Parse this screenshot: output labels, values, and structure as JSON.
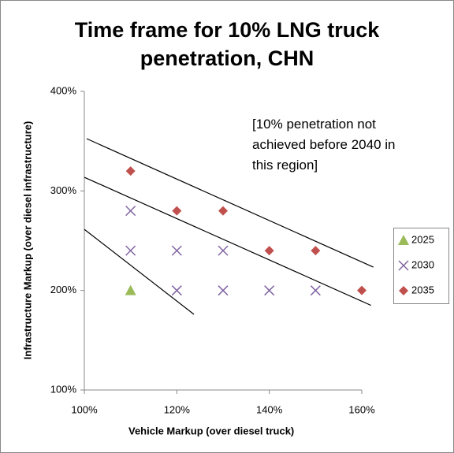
{
  "chart_data": {
    "type": "scatter",
    "title": "Time frame for 10% LNG truck penetration, CHN",
    "annotation": "[10% penetration not achieved before 2040 in this region]",
    "xlabel": "Vehicle Markup (over diesel truck)",
    "ylabel": "Infrastructure Markup (over diesel infrastructure)",
    "xlim": [
      100,
      160
    ],
    "ylim": [
      100,
      400
    ],
    "xticks": [
      {
        "value": 100,
        "label": "100%"
      },
      {
        "value": 120,
        "label": "120%"
      },
      {
        "value": 140,
        "label": "140%"
      },
      {
        "value": 160,
        "label": "160%"
      }
    ],
    "yticks": [
      {
        "value": 100,
        "label": "100%"
      },
      {
        "value": 200,
        "label": "200%"
      },
      {
        "value": 300,
        "label": "300%"
      },
      {
        "value": 400,
        "label": "400%"
      }
    ],
    "legend": "right",
    "series": [
      {
        "name": "2025",
        "color": "#9bbb59",
        "marker": "triangle",
        "x": [
          110
        ],
        "values": [
          200
        ]
      },
      {
        "name": "2030",
        "color": "#8064a2",
        "marker": "x",
        "x": [
          110,
          110,
          120,
          130,
          120,
          130,
          140,
          150
        ],
        "values": [
          280,
          240,
          240,
          240,
          200,
          200,
          200,
          200
        ]
      },
      {
        "name": "2035",
        "color": "#c0504d",
        "marker": "diamond",
        "x": [
          110,
          120,
          130,
          140,
          150,
          160
        ],
        "values": [
          320,
          280,
          280,
          240,
          240,
          200
        ]
      }
    ],
    "lines": [
      {
        "x": [
          100.5,
          162.5
        ],
        "y": [
          352.5,
          223.4
        ]
      },
      {
        "x": [
          100,
          162
        ],
        "y": [
          313.7,
          185
        ]
      },
      {
        "x": [
          100,
          123.7
        ],
        "y": [
          261.4,
          176
        ]
      }
    ]
  }
}
